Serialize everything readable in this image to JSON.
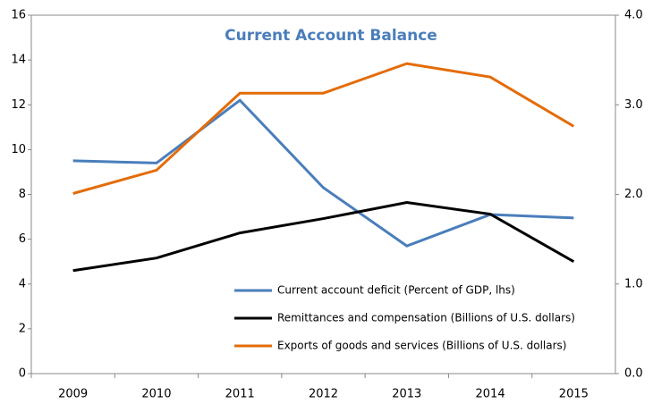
{
  "chart_data": {
    "type": "line",
    "title": "Current Account Balance",
    "title_color": "#4a7ebb",
    "categories": [
      "2009",
      "2010",
      "2011",
      "2012",
      "2013",
      "2014",
      "2015"
    ],
    "series": [
      {
        "name": "Current account  deficit (Percent of GDP, lhs)",
        "color": "#4a7ebb",
        "values": [
          9.5,
          9.4,
          12.2,
          8.3,
          5.7,
          7.1,
          6.95
        ]
      },
      {
        "name": "Remittances and compensation  (Billions of U.S. dollars)",
        "color": "#000000",
        "axis": "y2",
        "values": [
          1.15,
          1.29,
          1.57,
          1.73,
          1.91,
          1.78,
          1.25
        ]
      },
      {
        "name": "Exports of goods and services  (Billions of U.S. dollars)",
        "color": "#e36c0a",
        "axis": "y2",
        "values": [
          2.01,
          2.27,
          3.13,
          3.13,
          3.46,
          3.31,
          2.76
        ]
      }
    ],
    "ylim": [
      0,
      16
    ],
    "yticks": [
      0,
      2,
      4,
      6,
      8,
      10,
      12,
      14,
      16
    ],
    "y2lim": [
      0,
      4
    ],
    "y2ticks": [
      {
        "value": 0,
        "label": "0.0"
      },
      {
        "value": 1,
        "label": "1.0"
      },
      {
        "value": 2,
        "label": "2.0"
      },
      {
        "value": 3,
        "label": "3.0"
      },
      {
        "value": 4,
        "label": "4.0"
      }
    ],
    "grid": false,
    "legend": "lower-right"
  }
}
